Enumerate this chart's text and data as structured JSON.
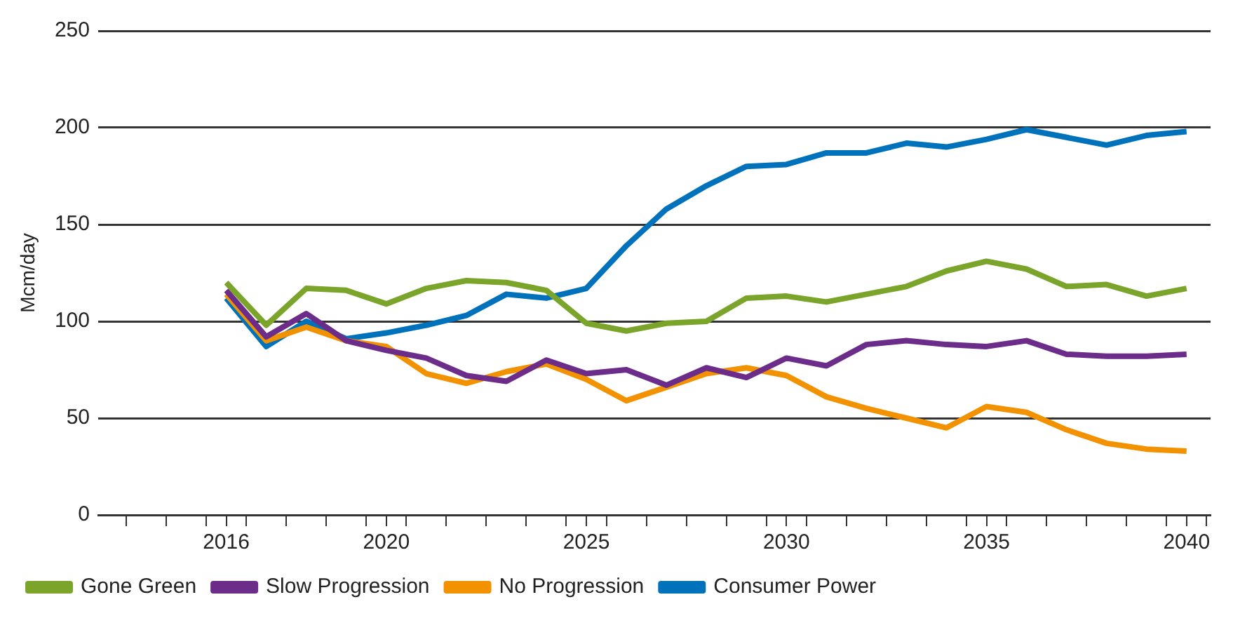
{
  "chart_data": {
    "type": "line",
    "ylabel": "Mcm/day",
    "x": [
      2016,
      2017,
      2018,
      2019,
      2020,
      2021,
      2022,
      2023,
      2024,
      2025,
      2026,
      2027,
      2028,
      2029,
      2030,
      2031,
      2032,
      2033,
      2034,
      2035,
      2036,
      2037,
      2038,
      2039,
      2040
    ],
    "xlim": [
      2012.8,
      2040.6
    ],
    "xticks": [
      {
        "value": 2013.5,
        "label": null
      },
      {
        "value": 2014.5,
        "label": null
      },
      {
        "value": 2015.5,
        "label": null
      },
      2016,
      {
        "value": 2016.5,
        "label": null
      },
      {
        "value": 2017.5,
        "label": null
      },
      {
        "value": 2018.5,
        "label": null
      },
      {
        "value": 2019.5,
        "label": null
      },
      2020,
      {
        "value": 2020.5,
        "label": null
      },
      {
        "value": 2021.5,
        "label": null
      },
      {
        "value": 2022.5,
        "label": null
      },
      {
        "value": 2023.5,
        "label": null
      },
      {
        "value": 2024.5,
        "label": null
      },
      2025,
      {
        "value": 2025.5,
        "label": null
      },
      {
        "value": 2026.5,
        "label": null
      },
      {
        "value": 2027.5,
        "label": null
      },
      {
        "value": 2028.5,
        "label": null
      },
      {
        "value": 2029.5,
        "label": null
      },
      2030,
      {
        "value": 2030.5,
        "label": null
      },
      {
        "value": 2031.5,
        "label": null
      },
      {
        "value": 2032.5,
        "label": null
      },
      {
        "value": 2033.5,
        "label": null
      },
      {
        "value": 2034.5,
        "label": null
      },
      2035,
      {
        "value": 2035.5,
        "label": null
      },
      {
        "value": 2036.5,
        "label": null
      },
      {
        "value": 2037.5,
        "label": null
      },
      {
        "value": 2038.5,
        "label": null
      },
      {
        "value": 2039.5,
        "label": null
      },
      2040,
      {
        "value": 2040.5,
        "label": null
      }
    ],
    "ylim": [
      0,
      250
    ],
    "yticks": [
      0,
      50,
      100,
      150,
      200,
      250
    ],
    "grid": "y",
    "legend": "bottom",
    "marker": "none",
    "line_style": "solid",
    "series": [
      {
        "name": "Gone Green",
        "color": "#7aa52a",
        "values": [
          120,
          98,
          117,
          116,
          109,
          117,
          121,
          120,
          116,
          99,
          95,
          99,
          100,
          112,
          113,
          110,
          114,
          118,
          126,
          131,
          127,
          118,
          119,
          113,
          117
        ]
      },
      {
        "name": "Slow Progression",
        "color": "#6b2c8a",
        "values": [
          116,
          92,
          104,
          90,
          85,
          81,
          72,
          69,
          80,
          73,
          75,
          67,
          76,
          71,
          81,
          77,
          88,
          90,
          88,
          87,
          90,
          83,
          82,
          82,
          83
        ]
      },
      {
        "name": "No Progression",
        "color": "#f39200",
        "values": [
          114,
          90,
          97,
          90,
          87,
          73,
          68,
          74,
          78,
          70,
          59,
          66,
          73,
          76,
          72,
          61,
          55,
          50,
          45,
          56,
          53,
          44,
          37,
          34,
          33
        ]
      },
      {
        "name": "Consumer Power",
        "color": "#0072bc",
        "values": [
          112,
          87,
          100,
          91,
          94,
          98,
          103,
          114,
          112,
          117,
          139,
          158,
          170,
          180,
          181,
          187,
          187,
          192,
          190,
          194,
          199,
          195,
          191,
          196,
          198
        ]
      }
    ]
  }
}
